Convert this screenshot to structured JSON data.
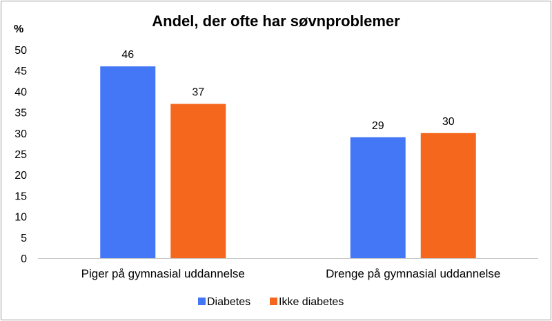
{
  "chart_data": {
    "type": "bar",
    "title": "Andel, der ofte har søvnproblemer",
    "ylabel": "%",
    "ylim": [
      0,
      50
    ],
    "y_ticks": [
      0,
      5,
      10,
      15,
      20,
      25,
      30,
      35,
      40,
      45,
      50
    ],
    "categories": [
      "Piger på gymnasial uddannelse",
      "Drenge på gymnasial uddannelse"
    ],
    "series": [
      {
        "name": "Diabetes",
        "values": [
          46,
          29
        ],
        "color": "#4477f5"
      },
      {
        "name": "Ikke diabetes",
        "values": [
          37,
          30
        ],
        "color": "#f5671d"
      }
    ],
    "grid": false,
    "legend_position": "bottom"
  }
}
